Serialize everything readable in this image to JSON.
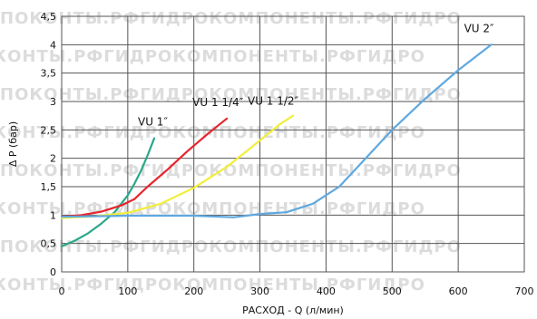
{
  "chart_data": {
    "type": "line",
    "xlabel": "РАСХОД - Q (л/мин)",
    "ylabel": "Δ P (бар)",
    "xlim": [
      0,
      700
    ],
    "ylim": [
      0,
      4.5
    ],
    "x_ticks": [
      "0",
      "100",
      "200",
      "300",
      "400",
      "500",
      "600",
      "700"
    ],
    "y_ticks": [
      "0",
      "0,5",
      "1",
      "1,5",
      "2",
      "2,5",
      "3",
      "3,5",
      "4",
      "4,5"
    ],
    "grid": true,
    "watermark": "ПОКОНТЫ.РФГИДРОКОМПОНЕНТЫ.РФГИДРО",
    "series": [
      {
        "name": "VU 1″",
        "color": "#2aa889",
        "points": [
          [
            0,
            0.45
          ],
          [
            20,
            0.55
          ],
          [
            40,
            0.68
          ],
          [
            60,
            0.85
          ],
          [
            80,
            1.05
          ],
          [
            100,
            1.35
          ],
          [
            110,
            1.55
          ],
          [
            120,
            1.78
          ],
          [
            130,
            2.05
          ],
          [
            140,
            2.35
          ]
        ]
      },
      {
        "name": "VU 1 1/4″",
        "color": "#e8242c",
        "points": [
          [
            0,
            0.97
          ],
          [
            30,
            1.0
          ],
          [
            60,
            1.06
          ],
          [
            90,
            1.17
          ],
          [
            110,
            1.28
          ],
          [
            130,
            1.5
          ],
          [
            160,
            1.8
          ],
          [
            190,
            2.12
          ],
          [
            220,
            2.42
          ],
          [
            250,
            2.7
          ]
        ]
      },
      {
        "name": "VU 1 1/2″",
        "color": "#f2ee3a",
        "points": [
          [
            0,
            0.95
          ],
          [
            50,
            0.98
          ],
          [
            100,
            1.04
          ],
          [
            150,
            1.2
          ],
          [
            200,
            1.48
          ],
          [
            250,
            1.85
          ],
          [
            290,
            2.22
          ],
          [
            330,
            2.6
          ],
          [
            350,
            2.75
          ]
        ]
      },
      {
        "name": "VU 2″",
        "color": "#5fa8e0",
        "points": [
          [
            0,
            0.97
          ],
          [
            100,
            0.99
          ],
          [
            200,
            0.99
          ],
          [
            260,
            0.96
          ],
          [
            300,
            1.02
          ],
          [
            340,
            1.05
          ],
          [
            380,
            1.2
          ],
          [
            420,
            1.5
          ],
          [
            460,
            2.0
          ],
          [
            500,
            2.5
          ],
          [
            550,
            3.05
          ],
          [
            600,
            3.55
          ],
          [
            650,
            4.0
          ]
        ]
      }
    ]
  }
}
